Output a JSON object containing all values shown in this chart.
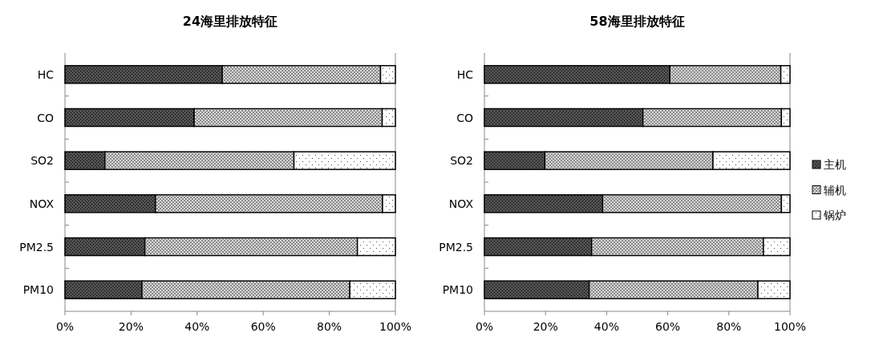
{
  "chart_data": [
    {
      "type": "bar",
      "orientation": "horizontal",
      "stacked": true,
      "title": "24海里排放特征",
      "categories": [
        "HC",
        "CO",
        "SO2",
        "NOX",
        "PM2.5",
        "PM10"
      ],
      "xlim": [
        0,
        100
      ],
      "xticks": [
        {
          "value": 0,
          "label": "0%"
        },
        {
          "value": 20,
          "label": "20%"
        },
        {
          "value": 40,
          "label": "40%"
        },
        {
          "value": 60,
          "label": "60%"
        },
        {
          "value": 80,
          "label": "80%"
        },
        {
          "value": 100,
          "label": "100%"
        }
      ],
      "grid": false,
      "legend": false,
      "series": [
        {
          "color": "#505050",
          "values": [
            47.6,
            39.1,
            12.1,
            27.4,
            24.2,
            23.3
          ]
        },
        {
          "color": "#d9d9d9",
          "values": [
            47.9,
            56.9,
            57.2,
            68.7,
            64.3,
            62.9
          ]
        },
        {
          "color": "#ffffff",
          "values": [
            4.5,
            4.0,
            30.7,
            3.9,
            11.5,
            13.8
          ]
        }
      ]
    },
    {
      "type": "bar",
      "orientation": "horizontal",
      "stacked": true,
      "title": "58海里排放特征",
      "categories": [
        "HC",
        "CO",
        "SO2",
        "NOX",
        "PM2.5",
        "PM10"
      ],
      "xlim": [
        0,
        100
      ],
      "xticks": [
        {
          "value": 0,
          "label": "0%"
        },
        {
          "value": 20,
          "label": "20%"
        },
        {
          "value": 40,
          "label": "40%"
        },
        {
          "value": 60,
          "label": "60%"
        },
        {
          "value": 80,
          "label": "80%"
        },
        {
          "value": 100,
          "label": "100%"
        }
      ],
      "grid": false,
      "legend": "right",
      "series": [
        {
          "name": "主机",
          "color": "#505050",
          "values": [
            60.7,
            51.9,
            19.8,
            38.7,
            35.1,
            34.3
          ]
        },
        {
          "name": "辅机",
          "color": "#d9d9d9",
          "values": [
            36.3,
            45.3,
            55.0,
            58.5,
            56.2,
            55.2
          ]
        },
        {
          "name": "锅炉",
          "color": "#ffffff",
          "values": [
            3.0,
            2.8,
            25.2,
            2.8,
            8.7,
            10.5
          ]
        }
      ]
    }
  ]
}
